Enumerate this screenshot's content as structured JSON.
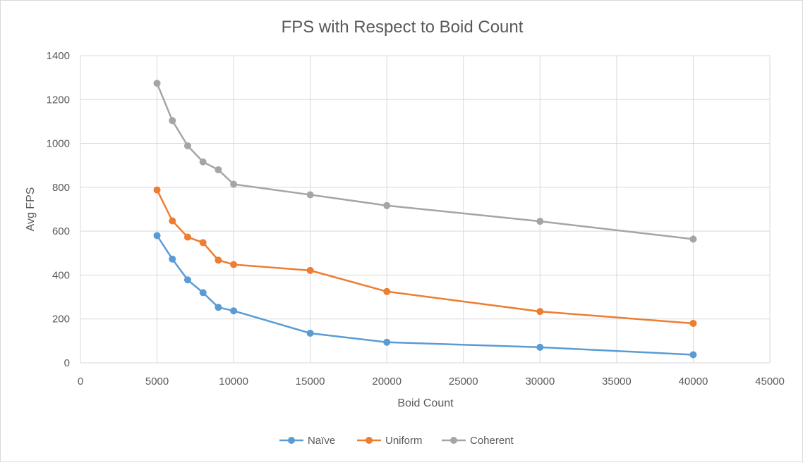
{
  "chart_data": {
    "type": "line",
    "title": "FPS with Respect to Boid Count",
    "xlabel": "Boid Count",
    "ylabel": "Avg FPS",
    "xlim": [
      0,
      45000
    ],
    "ylim": [
      0,
      1400
    ],
    "xticks": [
      0,
      5000,
      10000,
      15000,
      20000,
      25000,
      30000,
      35000,
      40000,
      45000
    ],
    "yticks": [
      0,
      200,
      400,
      600,
      800,
      1000,
      1200,
      1400
    ],
    "x": [
      5000,
      6000,
      7000,
      8000,
      9000,
      10000,
      15000,
      20000,
      30000,
      40000
    ],
    "grid": true,
    "legend_position": "bottom",
    "series": [
      {
        "name": "Naïve",
        "color": "#5b9bd5",
        "values": [
          580,
          473,
          378,
          320,
          253,
          237,
          135,
          94,
          71,
          37
        ]
      },
      {
        "name": "Uniform",
        "color": "#ed7d31",
        "values": [
          788,
          647,
          573,
          548,
          468,
          448,
          421,
          325,
          234,
          180
        ]
      },
      {
        "name": "Coherent",
        "color": "#a5a5a5",
        "values": [
          1274,
          1104,
          989,
          916,
          880,
          814,
          766,
          717,
          645,
          564
        ]
      }
    ]
  }
}
